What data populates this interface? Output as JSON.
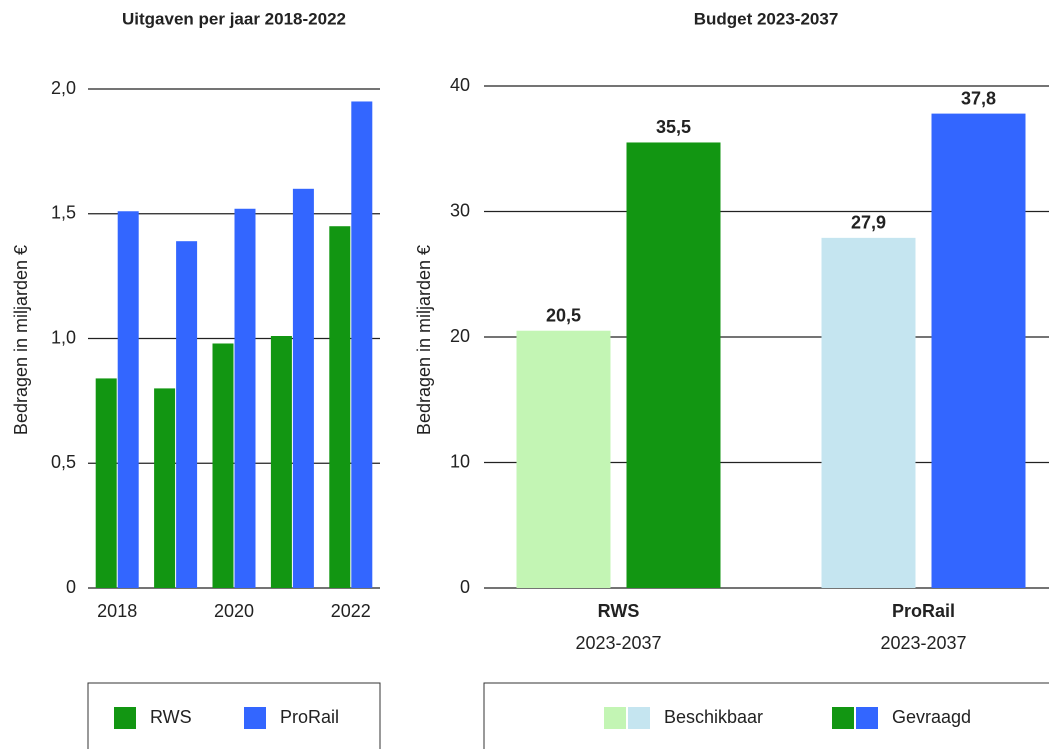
{
  "chart_data": [
    {
      "type": "bar",
      "title": "Uitgaven per jaar 2018-2022",
      "ylabel": "Bedragen in miljarden €",
      "categories": [
        "2018",
        null,
        "2020",
        null,
        "2022"
      ],
      "series": [
        {
          "name": "RWS",
          "color": "#129612",
          "values": [
            0.84,
            0.8,
            0.98,
            1.01,
            1.45
          ]
        },
        {
          "name": "ProRail",
          "color": "#3366ff",
          "values": [
            1.51,
            1.39,
            1.52,
            1.6,
            1.95
          ]
        }
      ],
      "ylim": [
        0,
        2
      ],
      "yticks": [
        0,
        {
          "value": 0.5,
          "label": "0,5"
        },
        {
          "value": 1,
          "label": "1,0"
        },
        {
          "value": 1.5,
          "label": "1,5"
        },
        {
          "value": 2,
          "label": "2,0"
        }
      ],
      "grid": true
    },
    {
      "type": "bar",
      "title": "Budget 2023-2037",
      "ylabel": "Bedragen in miljarden €",
      "categories": [
        "RWS",
        "ProRail"
      ],
      "sublabels": [
        "2023-2037",
        "2023-2037"
      ],
      "series": [
        {
          "name": "Beschikbaar",
          "colors": [
            "#c3f5b4",
            "#c5e5f0"
          ],
          "values": [
            20.5,
            27.9
          ],
          "value_labels": [
            "20,5",
            "27,9"
          ]
        },
        {
          "name": "Gevraagd",
          "colors": [
            "#129612",
            "#3366ff"
          ],
          "values": [
            35.5,
            37.8
          ],
          "value_labels": [
            "35,5",
            "37,8"
          ]
        }
      ],
      "ylim": [
        0,
        40
      ],
      "yticks": [
        0,
        10,
        20,
        30,
        40
      ],
      "grid": true
    }
  ]
}
